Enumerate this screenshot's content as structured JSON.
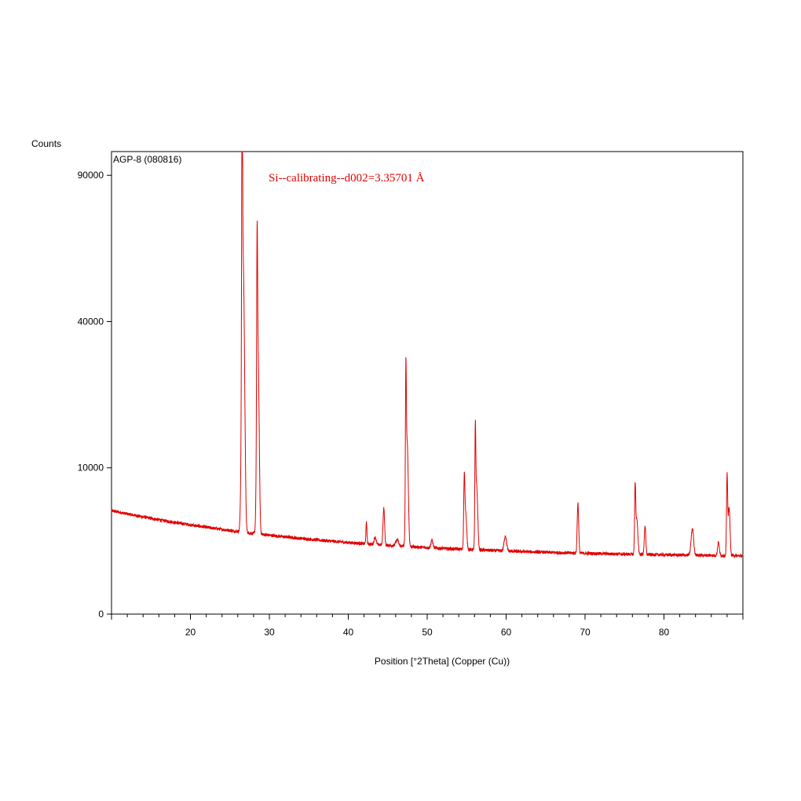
{
  "colors": {
    "series": "#e00000",
    "axes": "#000000",
    "annotation": "#e00000",
    "background": "#ffffff"
  },
  "chart_data": {
    "type": "line",
    "sample_label": "AGP-8  (080816)",
    "annotation": "Si--calibrating--d002=3.35701 Å",
    "ylabel": "Counts",
    "xlabel": "Position [°2Theta] (Copper (Cu))",
    "x_ticks": [
      "20",
      "30",
      "40",
      "50",
      "60",
      "70",
      "80"
    ],
    "y_ticks": [
      "0",
      "10000",
      "40000",
      "90000"
    ],
    "xlim": [
      10,
      90
    ],
    "ylim": [
      0,
      100000
    ],
    "y_scale": "sqrt",
    "grid": false,
    "legend": "none",
    "background": {
      "start": 5000,
      "end": 1500
    },
    "peaks": [
      {
        "x": 26.55,
        "height": 101000,
        "width": 0.12
      },
      {
        "x": 26.68,
        "height": 55000,
        "width": 0.35
      },
      {
        "x": 28.45,
        "height": 47000,
        "width": 0.12
      },
      {
        "x": 28.55,
        "height": 30000,
        "width": 0.3
      },
      {
        "x": 42.3,
        "height": 1600,
        "width": 0.15
      },
      {
        "x": 43.4,
        "height": 500,
        "width": 0.3
      },
      {
        "x": 44.5,
        "height": 3000,
        "width": 0.22
      },
      {
        "x": 46.2,
        "height": 400,
        "width": 0.4
      },
      {
        "x": 47.3,
        "height": 22500,
        "width": 0.12
      },
      {
        "x": 47.45,
        "height": 12000,
        "width": 0.3
      },
      {
        "x": 50.6,
        "height": 500,
        "width": 0.3
      },
      {
        "x": 54.7,
        "height": 6000,
        "width": 0.15
      },
      {
        "x": 54.85,
        "height": 3000,
        "width": 0.3
      },
      {
        "x": 56.1,
        "height": 12500,
        "width": 0.12
      },
      {
        "x": 56.25,
        "height": 6000,
        "width": 0.3
      },
      {
        "x": 59.9,
        "height": 1000,
        "width": 0.35
      },
      {
        "x": 69.1,
        "height": 4000,
        "width": 0.2
      },
      {
        "x": 76.35,
        "height": 5800,
        "width": 0.15
      },
      {
        "x": 76.55,
        "height": 2500,
        "width": 0.3
      },
      {
        "x": 77.6,
        "height": 2000,
        "width": 0.2
      },
      {
        "x": 83.6,
        "height": 1800,
        "width": 0.35
      },
      {
        "x": 86.9,
        "height": 800,
        "width": 0.25
      },
      {
        "x": 88.0,
        "height": 7500,
        "width": 0.15
      },
      {
        "x": 88.25,
        "height": 3800,
        "width": 0.25
      }
    ]
  }
}
